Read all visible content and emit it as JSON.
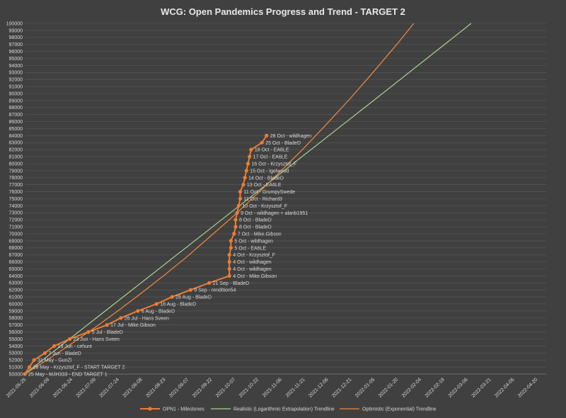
{
  "chart_data": {
    "type": "line",
    "title": "WCG: Open Pandemics Progress and Trend - TARGET 2",
    "xlabel": "",
    "ylabel": "",
    "ylim": [
      50000,
      100000
    ],
    "grid": "horizontal",
    "legend_position": "bottom",
    "background": "#404040",
    "x_ticks": [
      "2021-05-25",
      "2021-06-09",
      "2021-06-24",
      "2021-07-09",
      "2021-07-24",
      "2021-08-08",
      "2021-08-23",
      "2021-09-07",
      "2021-09-22",
      "2021-10-07",
      "2021-10-22",
      "2021-11-06",
      "2021-11-21",
      "2021-12-06",
      "2021-12-21",
      "2022-01-05",
      "2022-01-20",
      "2022-02-04",
      "2022-02-19",
      "2022-03-06",
      "2022-03-21",
      "2022-04-05",
      "2022-04-20"
    ],
    "y_ticks": [
      50000,
      51000,
      52000,
      53000,
      54000,
      55000,
      56000,
      57000,
      58000,
      59000,
      60000,
      61000,
      62000,
      63000,
      64000,
      65000,
      66000,
      67000,
      68000,
      69000,
      70000,
      71000,
      72000,
      73000,
      74000,
      75000,
      76000,
      77000,
      78000,
      79000,
      80000,
      81000,
      82000,
      83000,
      84000,
      85000,
      86000,
      87000,
      88000,
      89000,
      90000,
      91000,
      92000,
      93000,
      94000,
      95000,
      96000,
      97000,
      98000,
      99000,
      100000
    ],
    "series": [
      {
        "name": "OPN1 - Milestones",
        "color": "#ed7d31",
        "points": [
          {
            "x": "2021-05-25",
            "y": 50000,
            "label": "25 May - MJH333 - END TARGET 1"
          },
          {
            "x": "2021-05-28",
            "y": 51000,
            "label": "28 May - Krzysztof_F - START TARGET 2"
          },
          {
            "x": "2021-05-31",
            "y": 52000,
            "label": "31 May - GunZi"
          },
          {
            "x": "2021-06-07",
            "y": 53000,
            "label": "7 Jun - BladeD"
          },
          {
            "x": "2021-06-13",
            "y": 54000,
            "label": "13 Jun - cehunt"
          },
          {
            "x": "2021-06-23",
            "y": 55000,
            "label": "23 Jun - Hans Sveen"
          },
          {
            "x": "2021-07-05",
            "y": 56000,
            "label": "5 Jul - BladeD"
          },
          {
            "x": "2021-07-17",
            "y": 57000,
            "label": "17 Jul - Mike.Gibson"
          },
          {
            "x": "2021-07-26",
            "y": 58000,
            "label": "26 Jul - Hans Sveen"
          },
          {
            "x": "2021-08-06",
            "y": 59000,
            "label": "6 Aug - BladeD"
          },
          {
            "x": "2021-08-18",
            "y": 60000,
            "label": "18 Aug - BladeD"
          },
          {
            "x": "2021-08-28",
            "y": 61000,
            "label": "28 Aug - BladeD"
          },
          {
            "x": "2021-09-09",
            "y": 62000,
            "label": "9 Sep - rendition54"
          },
          {
            "x": "2021-09-21",
            "y": 63000,
            "label": "21 Sep - BladeD"
          },
          {
            "x": "2021-10-04",
            "y": 64000,
            "label": "4 Oct - Mike.Gibson"
          },
          {
            "x": "2021-10-04",
            "y": 65000,
            "label": "4 Oct - wildhagen"
          },
          {
            "x": "2021-10-04",
            "y": 66000,
            "label": "4 Oct - wildhagen"
          },
          {
            "x": "2021-10-04",
            "y": 67000,
            "label": "4 Oct - Krzysztof_F"
          },
          {
            "x": "2021-10-05",
            "y": 68000,
            "label": "5 Oct - EA6LE"
          },
          {
            "x": "2021-10-05",
            "y": 69000,
            "label": "5 Oct - wildhagen"
          },
          {
            "x": "2021-10-07",
            "y": 70000,
            "label": "7 Oct - Mike.Gibson"
          },
          {
            "x": "2021-10-08",
            "y": 71000,
            "label": "8 Oct - BladeD"
          },
          {
            "x": "2021-10-08",
            "y": 72000,
            "label": "8 Oct - BladeD"
          },
          {
            "x": "2021-10-09",
            "y": 73000,
            "label": "9 Oct - wildhagen + alanb1951"
          },
          {
            "x": "2021-10-10",
            "y": 74000,
            "label": "10 Oct - Krzysztof_F"
          },
          {
            "x": "2021-10-11",
            "y": 75000,
            "label": "11 Oct - Richard3"
          },
          {
            "x": "2021-10-11",
            "y": 76000,
            "label": "11 Oct - GrumpySwede"
          },
          {
            "x": "2021-10-13",
            "y": 77000,
            "label": "13 Oct - EA6LE"
          },
          {
            "x": "2021-10-14",
            "y": 78000,
            "label": "14 Oct - BladeD"
          },
          {
            "x": "2021-10-15",
            "y": 79000,
            "label": "15 Oct - Igelwood"
          },
          {
            "x": "2021-10-16",
            "y": 80000,
            "label": "16 Oct - Krzysztof_F"
          },
          {
            "x": "2021-10-17",
            "y": 81000,
            "label": "17 Oct - EA6LE"
          },
          {
            "x": "2021-10-18",
            "y": 82000,
            "label": "18 Oct - EA6LE"
          },
          {
            "x": "2021-10-25",
            "y": 83000,
            "label": "25 Oct - BladeD"
          },
          {
            "x": "2021-10-28",
            "y": 84000,
            "label": "28 Oct - wildhagen"
          }
        ]
      },
      {
        "name": "Realistic (Logarithmic Extrapolation) Trendline",
        "color": "#a9d18e",
        "points": [
          {
            "x": "2021-05-25",
            "y": 50000
          },
          {
            "x": "2021-10-07",
            "y": 73400
          },
          {
            "x": "2022-01-05",
            "y": 89000
          },
          {
            "x": "2022-03-09",
            "y": 100000
          }
        ]
      },
      {
        "name": "Optimistic (Exponential) Trendline",
        "color": "#f08a3c",
        "points": [
          {
            "x": "2021-05-25",
            "y": 50000
          },
          {
            "x": "2021-06-09",
            "y": 52100
          },
          {
            "x": "2021-06-24",
            "y": 54300
          },
          {
            "x": "2021-07-09",
            "y": 56600
          },
          {
            "x": "2021-07-24",
            "y": 59000
          },
          {
            "x": "2021-08-08",
            "y": 61500
          },
          {
            "x": "2021-08-23",
            "y": 64100
          },
          {
            "x": "2021-09-07",
            "y": 66800
          },
          {
            "x": "2021-09-22",
            "y": 69700
          },
          {
            "x": "2021-10-07",
            "y": 72600
          },
          {
            "x": "2021-10-22",
            "y": 75700
          },
          {
            "x": "2021-11-06",
            "y": 78900
          },
          {
            "x": "2021-11-21",
            "y": 82200
          },
          {
            "x": "2021-12-06",
            "y": 85700
          },
          {
            "x": "2021-12-21",
            "y": 89300
          },
          {
            "x": "2022-01-05",
            "y": 93100
          },
          {
            "x": "2022-01-20",
            "y": 97000
          },
          {
            "x": "2022-01-31",
            "y": 100000
          }
        ]
      }
    ]
  }
}
